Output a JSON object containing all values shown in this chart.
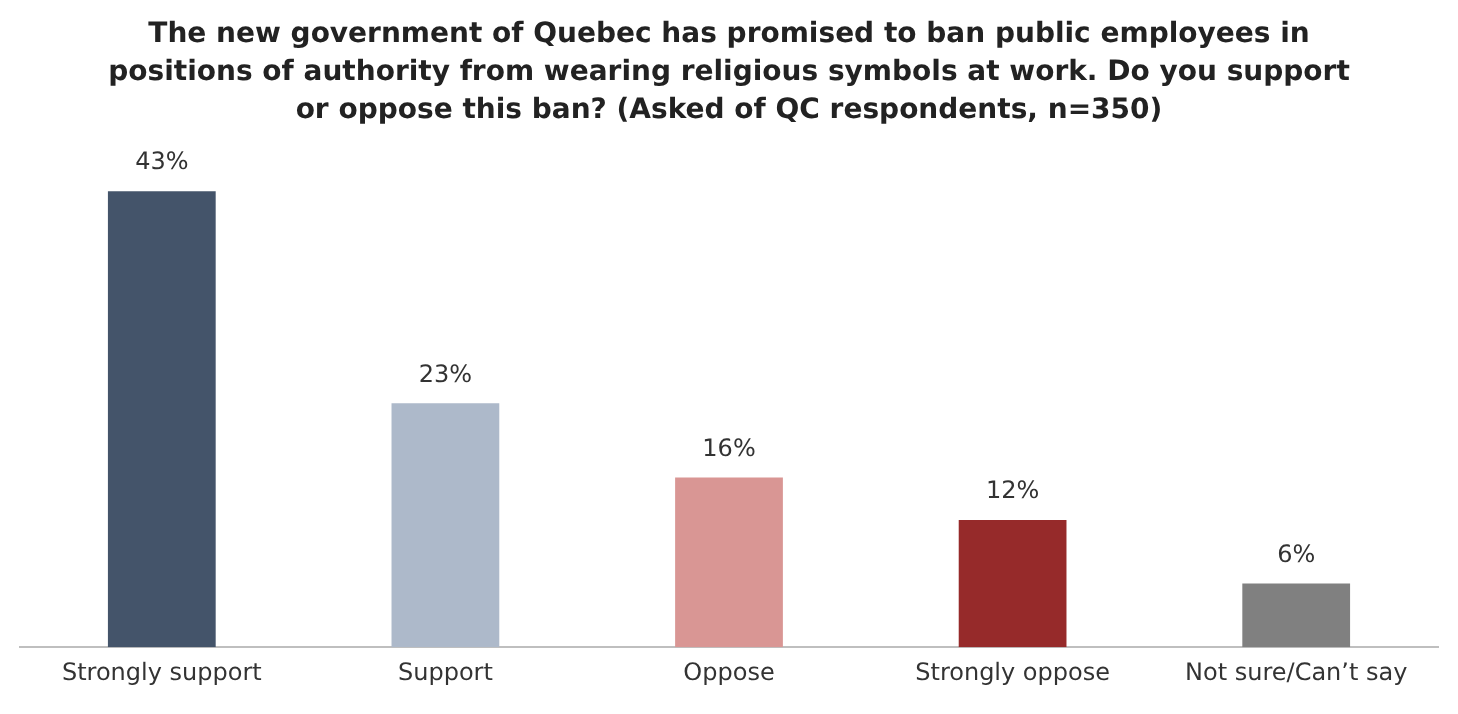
{
  "chart_data": {
    "type": "bar",
    "title": "The new government of Quebec has promised to ban public employees in positions of authority from wearing religious symbols at work. Do you support or oppose this ban? (Asked of QC respondents, n=350)",
    "categories": [
      "Strongly support",
      "Support",
      "Oppose",
      "Strongly oppose",
      "Not sure/Can’t say"
    ],
    "values": [
      43,
      23,
      16,
      12,
      6
    ],
    "colors": [
      "#44546a",
      "#adb9ca",
      "#d99694",
      "#962a2a",
      "#808080"
    ],
    "value_labels": [
      "43%",
      "23%",
      "16%",
      "12%",
      "6%"
    ],
    "grid": false,
    "legend": false
  }
}
